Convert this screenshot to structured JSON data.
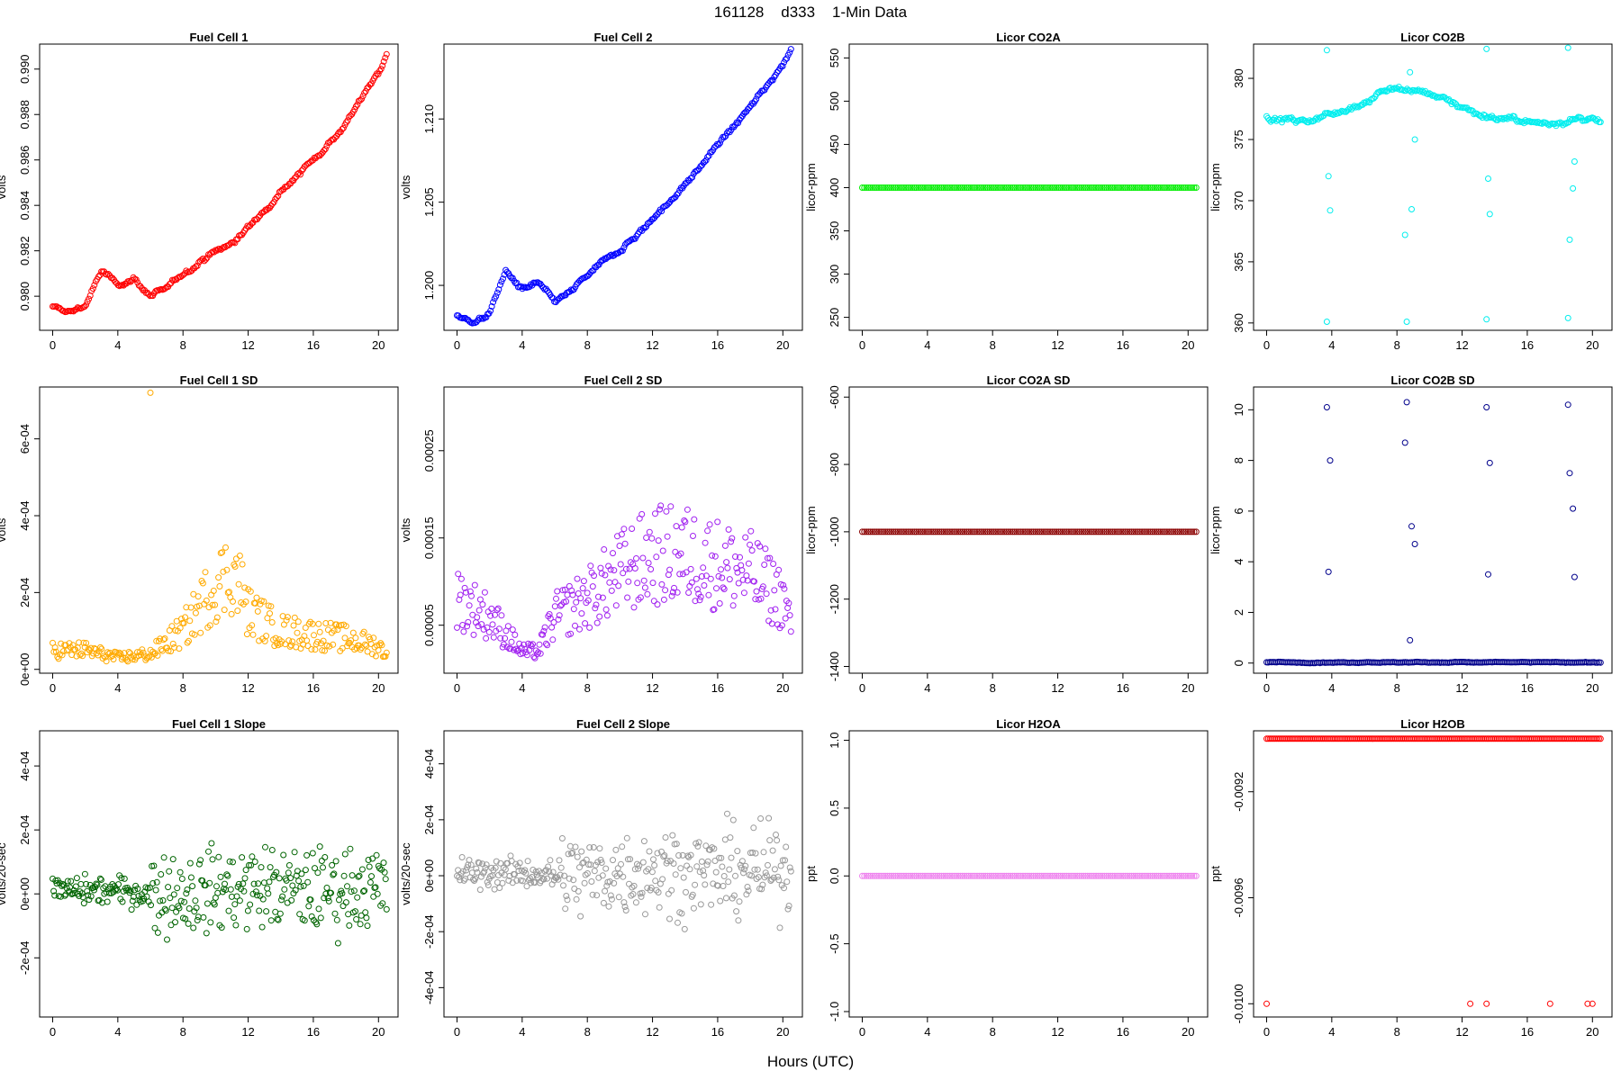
{
  "page": {
    "title": "161128    d333    1-Min Data",
    "xlabel": "Hours (UTC)"
  },
  "chart_data": [
    {
      "type": "scatter",
      "title": "Fuel Cell 1",
      "ylabel": "volts",
      "color": "#ff0000",
      "xlim": [
        -0.8,
        21.2
      ],
      "xticks": [
        0,
        4,
        8,
        12,
        16,
        20
      ],
      "ylim": [
        0.9785,
        0.9911
      ],
      "yticks": [
        0.98,
        0.982,
        0.984,
        0.986,
        0.988,
        0.99
      ],
      "yticklabels": [
        "0.980",
        "0.982",
        "0.984",
        "0.986",
        "0.988",
        "0.990"
      ],
      "series": [
        {
          "x": [
            0,
            1,
            2,
            3,
            4,
            5,
            6,
            7,
            8,
            9,
            10,
            11,
            12,
            13,
            14,
            15,
            16,
            17,
            18,
            19,
            20,
            20.5
          ],
          "y": [
            0.9795,
            0.9793,
            0.9796,
            0.9811,
            0.9805,
            0.9808,
            0.98,
            0.9803,
            0.981,
            0.9815,
            0.982,
            0.9823,
            0.983,
            0.9838,
            0.9847,
            0.9853,
            0.986,
            0.9868,
            0.9876,
            0.9888,
            0.9898,
            0.9906
          ]
        }
      ]
    },
    {
      "type": "scatter",
      "title": "Fuel Cell 2",
      "ylabel": "volts",
      "color": "#0000ff",
      "xlim": [
        -0.8,
        21.2
      ],
      "xticks": [
        0,
        4,
        8,
        12,
        16,
        20
      ],
      "ylim": [
        1.1973,
        1.2145
      ],
      "yticks": [
        1.2,
        1.205,
        1.21
      ],
      "yticklabels": [
        "1.200",
        "1.205",
        "1.210"
      ],
      "series": [
        {
          "x": [
            0,
            1,
            2,
            3,
            4,
            5,
            6,
            7,
            8,
            9,
            10,
            11,
            12,
            13,
            14,
            15,
            16,
            17,
            18,
            19,
            20,
            20.5
          ],
          "y": [
            1.1982,
            1.1978,
            1.1983,
            1.2009,
            1.1997,
            1.2001,
            1.199,
            1.1996,
            1.2006,
            1.2014,
            1.2022,
            1.203,
            1.204,
            1.205,
            1.206,
            1.2072,
            1.2085,
            1.2095,
            1.2107,
            1.212,
            1.2133,
            1.2143
          ]
        }
      ]
    },
    {
      "type": "scatter",
      "title": "Licor CO2A",
      "ylabel": "licor-ppm",
      "color": "#00ee00",
      "xlim": [
        -0.8,
        21.2
      ],
      "xticks": [
        0,
        4,
        8,
        12,
        16,
        20
      ],
      "ylim": [
        235,
        566
      ],
      "yticks": [
        250,
        300,
        350,
        400,
        450,
        500,
        550
      ],
      "yticklabels": [
        "250",
        "300",
        "350",
        "400",
        "450",
        "500",
        "550"
      ],
      "series": [
        {
          "x": [
            0,
            20.5
          ],
          "y": [
            400,
            400
          ]
        }
      ]
    },
    {
      "type": "scatter",
      "title": "Licor CO2B",
      "ylabel": "licor-ppm",
      "color": "#00eeee",
      "xlim": [
        -0.8,
        21.2
      ],
      "xticks": [
        0,
        4,
        8,
        12,
        16,
        20
      ],
      "ylim": [
        359.4,
        382.8
      ],
      "yticks": [
        360,
        365,
        370,
        375,
        380
      ],
      "yticklabels": [
        "360",
        "365",
        "370",
        "375",
        "380"
      ],
      "series": [
        {
          "x": [
            0,
            1,
            2,
            3,
            4,
            5,
            6,
            7,
            8,
            9,
            10,
            11,
            12,
            13,
            14,
            15,
            16,
            17,
            18,
            19,
            20,
            20.5
          ],
          "y": [
            376.8,
            376.6,
            376.5,
            376.7,
            377.2,
            377.6,
            378.0,
            378.9,
            379.2,
            379.0,
            378.8,
            378.3,
            377.7,
            377.1,
            376.8,
            376.6,
            376.4,
            376.3,
            376.5,
            376.6,
            376.6,
            376.2
          ]
        },
        {
          "x": [
            3.7,
            3.7,
            3.8,
            3.9,
            8.5,
            8.6,
            8.8,
            8.9,
            9.1,
            13.5,
            13.5,
            13.6,
            13.7,
            18.5,
            18.5,
            18.6,
            18.8,
            18.9
          ],
          "y": [
            382.3,
            360.1,
            372.0,
            369.2,
            367.2,
            360.1,
            380.5,
            369.3,
            375.0,
            382.4,
            360.3,
            371.8,
            368.9,
            382.5,
            360.4,
            366.8,
            371.0,
            373.2
          ]
        }
      ]
    },
    {
      "type": "scatter",
      "title": "Fuel Cell 1 SD",
      "ylabel": "volts",
      "color": "#ffaa00",
      "xlim": [
        -0.8,
        21.2
      ],
      "xticks": [
        0,
        4,
        8,
        12,
        16,
        20
      ],
      "ylim": [
        -1e-05,
        0.000735
      ],
      "yticks": [
        0,
        0.0002,
        0.0004,
        0.0006
      ],
      "yticklabels": [
        "0e+00",
        "2e-04",
        "4e-04",
        "6e-04"
      ],
      "series": [
        {
          "x": [
            0,
            2,
            4,
            6,
            8,
            9,
            10,
            11,
            11.5,
            12,
            14,
            16,
            18,
            20,
            20.5
          ],
          "y": [
            5e-05,
            5e-05,
            3e-05,
            4e-05,
            0.0001,
            0.00016,
            0.00022,
            0.00025,
            0.00022,
            0.00015,
            0.0001,
            9e-05,
            8e-05,
            6e-05,
            4e-05
          ]
        },
        {
          "x": [
            6.0
          ],
          "y": [
            0.00072
          ]
        }
      ]
    },
    {
      "type": "scatter",
      "title": "Fuel Cell 2 SD",
      "ylabel": "volts",
      "color": "#a020f0",
      "xlim": [
        -0.8,
        21.2
      ],
      "xticks": [
        0,
        4,
        8,
        12,
        16,
        20
      ],
      "ylim": [
        -5e-06,
        0.000323
      ],
      "yticks": [
        5e-05,
        0.00015,
        0.00025
      ],
      "yticklabels": [
        "0.00005",
        "0.00015",
        "0.00025"
      ],
      "series": [
        {
          "x": [
            0,
            2,
            3,
            4,
            5,
            5.5,
            6,
            8,
            10,
            12,
            14,
            16,
            18,
            20,
            20.5
          ],
          "y": [
            8e-05,
            6e-05,
            4e-05,
            2e-05,
            2e-05,
            4e-05,
            6e-05,
            8e-05,
            0.00011,
            0.00013,
            0.00013,
            0.00012,
            0.00011,
            8e-05,
            5e-05
          ]
        }
      ]
    },
    {
      "type": "scatter",
      "title": "Licor CO2A SD",
      "ylabel": "licor-ppm",
      "color": "#8b0000",
      "xlim": [
        -0.8,
        21.2
      ],
      "xticks": [
        0,
        4,
        8,
        12,
        16,
        20
      ],
      "ylim": [
        -1420,
        -570
      ],
      "yticks": [
        -1400,
        -1200,
        -1000,
        -800,
        -600
      ],
      "yticklabels": [
        "-1400",
        "-1200",
        "-1000",
        "-800",
        "-600"
      ],
      "series": [
        {
          "x": [
            0,
            20.5
          ],
          "y": [
            -1000,
            -1000
          ]
        }
      ]
    },
    {
      "type": "scatter",
      "title": "Licor CO2B SD",
      "ylabel": "licor-ppm",
      "color": "#00008b",
      "xlim": [
        -0.8,
        21.2
      ],
      "xticks": [
        0,
        4,
        8,
        12,
        16,
        20
      ],
      "ylim": [
        -0.4,
        10.9
      ],
      "yticks": [
        0,
        2,
        4,
        6,
        8,
        10
      ],
      "yticklabels": [
        "0",
        "2",
        "4",
        "6",
        "8",
        "10"
      ],
      "series": [
        {
          "x": [
            0,
            20.5
          ],
          "y": [
            0.03,
            0.03
          ]
        },
        {
          "x": [
            3.7,
            3.8,
            3.9,
            8.5,
            8.6,
            8.8,
            8.9,
            9.1,
            13.5,
            13.6,
            13.7,
            18.5,
            18.6,
            18.8,
            18.9
          ],
          "y": [
            10.1,
            3.6,
            8.0,
            8.7,
            10.3,
            0.9,
            5.4,
            4.7,
            10.1,
            3.5,
            7.9,
            10.2,
            7.5,
            6.1,
            3.4
          ]
        }
      ]
    },
    {
      "type": "scatter",
      "title": "Fuel Cell 1 Slope",
      "ylabel": "volts/20-sec",
      "color": "#006400",
      "xlim": [
        -0.8,
        21.2
      ],
      "xticks": [
        0,
        4,
        8,
        12,
        16,
        20
      ],
      "ylim": [
        -0.000385,
        0.00051
      ],
      "yticks": [
        -0.0002,
        0,
        0.0002,
        0.0004
      ],
      "yticklabels": [
        "-2e-04",
        "0e+00",
        "2e-04",
        "4e-04"
      ],
      "series": [
        {
          "x": [
            0,
            4,
            6,
            8,
            12,
            16,
            20,
            20.5
          ],
          "y": [
            1e-05,
            1e-05,
            0,
            0,
            2e-05,
            1e-05,
            2e-05,
            1e-05
          ]
        }
      ]
    },
    {
      "type": "scatter",
      "title": "Fuel Cell 2 Slope",
      "ylabel": "volts/20-sec",
      "color": "#999999",
      "xlim": [
        -0.8,
        21.2
      ],
      "xticks": [
        0,
        4,
        8,
        12,
        16,
        20
      ],
      "ylim": [
        -0.000505,
        0.000518
      ],
      "yticks": [
        -0.0004,
        -0.0002,
        0,
        0.0002,
        0.0004
      ],
      "yticklabels": [
        "-4e-04",
        "-2e-04",
        "0e+00",
        "2e-04",
        "4e-04"
      ],
      "series": [
        {
          "x": [
            0,
            4,
            6,
            8,
            12,
            16,
            20,
            20.5
          ],
          "y": [
            1e-05,
            1e-05,
            0,
            0,
            2e-05,
            1e-05,
            2e-05,
            1e-05
          ]
        }
      ]
    },
    {
      "type": "scatter",
      "title": "Licor H2OA",
      "ylabel": "ppt",
      "color": "#ee82ee",
      "xlim": [
        -0.8,
        21.2
      ],
      "xticks": [
        0,
        4,
        8,
        12,
        16,
        20
      ],
      "ylim": [
        -1.04,
        1.07
      ],
      "yticks": [
        -1,
        -0.5,
        0,
        0.5,
        1
      ],
      "yticklabels": [
        "-1.0",
        "-0.5",
        "0.0",
        "0.5",
        "1.0"
      ],
      "series": [
        {
          "x": [
            0,
            20.5
          ],
          "y": [
            0,
            0
          ]
        }
      ]
    },
    {
      "type": "scatter",
      "title": "Licor H2OB",
      "ylabel": "ppt",
      "color": "#ff0000",
      "xlim": [
        -0.8,
        21.2
      ],
      "xticks": [
        0,
        4,
        8,
        12,
        16,
        20
      ],
      "ylim": [
        -0.01005,
        -0.00897
      ],
      "yticks": [
        -0.01,
        -0.0096,
        -0.0092
      ],
      "yticklabels": [
        "-0.0100",
        "-0.0096",
        "-0.0092"
      ],
      "series": [
        {
          "x": [
            0,
            20.5
          ],
          "y": [
            -0.009,
            -0.009
          ]
        },
        {
          "x": [
            0,
            12.5
          ],
          "y": [
            -0.01,
            -0.01
          ]
        },
        {
          "x": [
            13.5,
            17.4,
            19.7,
            20.0
          ],
          "y": [
            -0.01,
            -0.01,
            -0.01,
            -0.01
          ]
        }
      ]
    }
  ]
}
